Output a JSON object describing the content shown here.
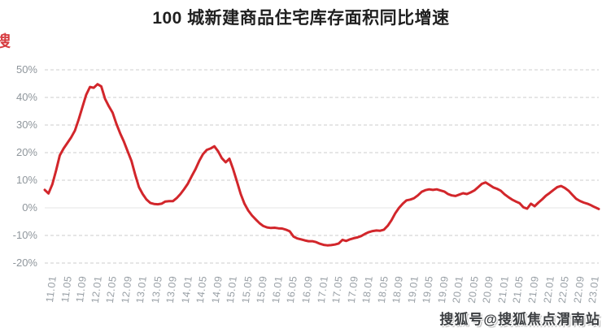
{
  "page": {
    "title": "100 城新建商品住宅库存面积同比增速",
    "watermark": "搜狐号@搜狐焦点渭南站",
    "corner_mark": "搜"
  },
  "chart_data": {
    "type": "line",
    "title": "100 城新建商品住宅库存面积同比增速",
    "legend": "none",
    "grid": "horizontal-dashed",
    "y_unit": "%",
    "ylim": [
      -20,
      50
    ],
    "y_ticks": [
      "50%",
      "40%",
      "30%",
      "20%",
      "10%",
      "0%",
      "-10%",
      "-20%"
    ],
    "x_tick_every": 4,
    "x_tick_labels": [
      "11.01",
      "11.05",
      "11.09",
      "12.01",
      "12.05",
      "12.09",
      "13.01",
      "13.05",
      "13.09",
      "14.01",
      "14.05",
      "14.09",
      "15.01",
      "15.05",
      "15.09",
      "16.01",
      "16.05",
      "16.09",
      "17.01",
      "17.05",
      "17.09",
      "18.01",
      "18.05",
      "18.09",
      "19.01",
      "19.05",
      "19.09",
      "20.01",
      "20.05",
      "20.09",
      "21.01",
      "21.05",
      "21.09",
      "22.01",
      "22.05",
      "22.09",
      "23.01"
    ],
    "x": [
      "11.01",
      "11.02",
      "11.03",
      "11.04",
      "11.05",
      "11.06",
      "11.07",
      "11.08",
      "11.09",
      "11.10",
      "11.11",
      "11.12",
      "12.01",
      "12.02",
      "12.03",
      "12.04",
      "12.05",
      "12.06",
      "12.07",
      "12.08",
      "12.09",
      "12.10",
      "12.11",
      "12.12",
      "13.01",
      "13.02",
      "13.03",
      "13.04",
      "13.05",
      "13.06",
      "13.07",
      "13.08",
      "13.09",
      "13.10",
      "13.11",
      "13.12",
      "14.01",
      "14.02",
      "14.03",
      "14.04",
      "14.05",
      "14.06",
      "14.07",
      "14.08",
      "14.09",
      "14.10",
      "14.11",
      "14.12",
      "15.01",
      "15.02",
      "15.03",
      "15.04",
      "15.05",
      "15.06",
      "15.07",
      "15.08",
      "15.09",
      "15.10",
      "15.11",
      "15.12",
      "16.01",
      "16.02",
      "16.03",
      "16.04",
      "16.05",
      "16.06",
      "16.07",
      "16.08",
      "16.09",
      "16.10",
      "16.11",
      "16.12",
      "17.01",
      "17.02",
      "17.03",
      "17.04",
      "17.05",
      "17.06",
      "17.07",
      "17.08",
      "17.09",
      "17.10",
      "17.11",
      "17.12",
      "18.01",
      "18.02",
      "18.03",
      "18.04",
      "18.05",
      "18.06",
      "18.07",
      "18.08",
      "18.09",
      "18.10",
      "18.11",
      "18.12",
      "19.01",
      "19.02",
      "19.03",
      "19.04",
      "19.05",
      "19.06",
      "19.07",
      "19.08",
      "19.09",
      "19.10",
      "19.11",
      "19.12",
      "20.01",
      "20.02",
      "20.03",
      "20.04",
      "20.05",
      "20.06",
      "20.07",
      "20.08",
      "20.09",
      "20.10",
      "20.11",
      "20.12",
      "21.01",
      "21.02",
      "21.03",
      "21.04",
      "21.05",
      "21.06",
      "21.07",
      "21.08",
      "21.09",
      "21.10",
      "21.11",
      "21.12",
      "22.01",
      "22.02",
      "22.03",
      "22.04",
      "22.05",
      "22.06",
      "22.07",
      "22.08",
      "22.09",
      "22.10",
      "22.11",
      "22.12",
      "23.01",
      "23.02",
      "23.03",
      "23.04"
    ],
    "values": [
      6.5,
      5.2,
      8.5,
      13.5,
      19,
      21.5,
      23.5,
      25.5,
      28,
      32,
      36.5,
      41,
      43.8,
      43.5,
      44.8,
      44,
      39.5,
      36.8,
      34.5,
      30.5,
      27,
      24,
      20.5,
      17,
      12,
      7.5,
      5,
      3,
      1.8,
      1.4,
      1.3,
      1.5,
      2.3,
      2.4,
      2.4,
      3.5,
      5,
      6.8,
      8.8,
      11.5,
      14,
      17,
      19.5,
      21,
      21.5,
      22.3,
      20.5,
      18,
      16.5,
      17.8,
      14,
      9.5,
      5,
      1.5,
      -1,
      -2.8,
      -4.2,
      -5.6,
      -6.6,
      -7.1,
      -7.3,
      -7.2,
      -7.4,
      -7.5,
      -7.9,
      -8.5,
      -10.4,
      -11.1,
      -11.4,
      -11.8,
      -12.1,
      -12.1,
      -12.4,
      -13,
      -13.4,
      -13.6,
      -13.5,
      -13.3,
      -12.9,
      -11.6,
      -12,
      -11.4,
      -11,
      -10.7,
      -10.2,
      -9.4,
      -8.8,
      -8.4,
      -8.2,
      -8.3,
      -7.9,
      -6.5,
      -4.5,
      -2,
      0,
      1.5,
      2.7,
      3,
      3.5,
      4.5,
      5.8,
      6.4,
      6.7,
      6.5,
      6.7,
      6.3,
      5.9,
      5,
      4.5,
      4.3,
      4.8,
      5.3,
      5,
      5.6,
      6.3,
      7.5,
      8.7,
      9.2,
      8.3,
      7.4,
      6.9,
      6.2,
      4.9,
      3.9,
      3,
      2.3,
      1.7,
      0.2,
      -0.3,
      1.5,
      0.6,
      1.9,
      3.1,
      4.4,
      5.4,
      6.5,
      7.5,
      7.9,
      7.2,
      6.2,
      4.7,
      3.3,
      2.5,
      1.9,
      1.5,
      0.9,
      0.2,
      -0.4
    ],
    "style": {
      "line_color": "#d2262b",
      "line_width": 3,
      "grid_color": "#cccccc",
      "zero_line_color": "#e4e4e4",
      "axis_label_color": "#99a0a6",
      "background": "#ffffff"
    }
  }
}
